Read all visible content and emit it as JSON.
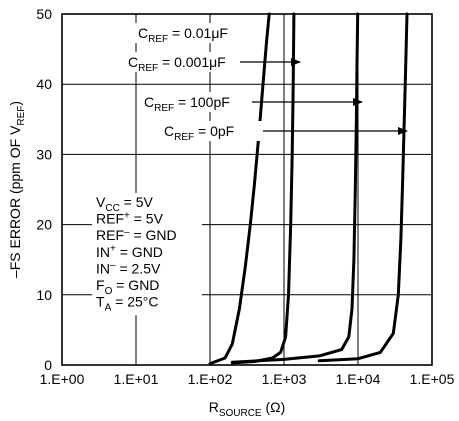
{
  "chart_data": {
    "type": "line",
    "x_scale": "log",
    "xlabel": {
      "main": "R",
      "sub": "SOURCE",
      "tail": " (Ω)"
    },
    "ylabel": {
      "main": "–FS ERROR (ppm OF V",
      "sub": "REF",
      "tail": ")"
    },
    "xlim": [
      1,
      100000
    ],
    "ylim": [
      0,
      50
    ],
    "x_ticks": [
      {
        "value": 1,
        "label": "1.E+00"
      },
      {
        "value": 10,
        "label": "1.E+01"
      },
      {
        "value": 100,
        "label": "1.E+02"
      },
      {
        "value": 1000,
        "label": "1.E+03"
      },
      {
        "value": 10000,
        "label": "1.E+04"
      },
      {
        "value": 100000,
        "label": "1.E+05"
      }
    ],
    "y_ticks": [
      {
        "value": 0,
        "label": "0"
      },
      {
        "value": 10,
        "label": "10"
      },
      {
        "value": 20,
        "label": "20"
      },
      {
        "value": 30,
        "label": "30"
      },
      {
        "value": 40,
        "label": "40"
      },
      {
        "value": 50,
        "label": "50"
      }
    ],
    "grid": true,
    "series": [
      {
        "name": "C_REF = 0.01μF",
        "label": {
          "main": "C",
          "sub": "REF",
          "tail": " = 0.01μF"
        },
        "points": [
          [
            100,
            0.2
          ],
          [
            160,
            1.0
          ],
          [
            200,
            3.0
          ],
          [
            250,
            8.0
          ],
          [
            300,
            14.0
          ],
          [
            350,
            20.0
          ],
          [
            400,
            26.0
          ],
          [
            460,
            33.0
          ],
          [
            520,
            40.0
          ],
          [
            580,
            46.0
          ],
          [
            630,
            50.0
          ]
        ]
      },
      {
        "name": "C_REF = 0.001μF",
        "label": {
          "main": "C",
          "sub": "REF",
          "tail": " = 0.001μF"
        },
        "points": [
          [
            200,
            0.3
          ],
          [
            400,
            0.5
          ],
          [
            700,
            1.0
          ],
          [
            900,
            1.8
          ],
          [
            1050,
            4.0
          ],
          [
            1150,
            10.0
          ],
          [
            1230,
            20.0
          ],
          [
            1290,
            30.0
          ],
          [
            1330,
            40.0
          ],
          [
            1360,
            50.0
          ]
        ]
      },
      {
        "name": "C_REF = 100pF",
        "label": {
          "main": "C",
          "sub": "REF",
          "tail": " = 100pF"
        },
        "points": [
          [
            200,
            0.4
          ],
          [
            1000,
            0.8
          ],
          [
            3000,
            1.3
          ],
          [
            6000,
            2.2
          ],
          [
            7500,
            4.0
          ],
          [
            8300,
            8.0
          ],
          [
            8800,
            15.0
          ],
          [
            9200,
            25.0
          ],
          [
            9500,
            35.0
          ],
          [
            9700,
            43.0
          ],
          [
            9900,
            50.0
          ]
        ]
      },
      {
        "name": "C_REF = 0pF",
        "label": {
          "main": "C",
          "sub": "REF",
          "tail": " = 0pF"
        },
        "points": [
          [
            3000,
            0.6
          ],
          [
            10000,
            0.9
          ],
          [
            20000,
            1.8
          ],
          [
            30000,
            4.5
          ],
          [
            35000,
            10.0
          ],
          [
            38000,
            18.0
          ],
          [
            40000,
            26.0
          ],
          [
            42000,
            34.0
          ],
          [
            44000,
            42.0
          ],
          [
            46000,
            50.0
          ]
        ]
      }
    ],
    "annotations": [
      {
        "main": "V",
        "sub": "CC",
        "tail": " = 5V"
      },
      {
        "main": "REF",
        "sup": "+",
        "tail": " = 5V"
      },
      {
        "main": "REF",
        "sup": "–",
        "tail": " = GND"
      },
      {
        "main": "IN",
        "sup": "+",
        "tail": " = GND"
      },
      {
        "main": "IN",
        "sup": "–",
        "tail": " = 2.5V"
      },
      {
        "main": "F",
        "sub": "O",
        "tail": " = GND"
      },
      {
        "main": "T",
        "sub": "A",
        "tail": " = 25°C"
      }
    ]
  }
}
